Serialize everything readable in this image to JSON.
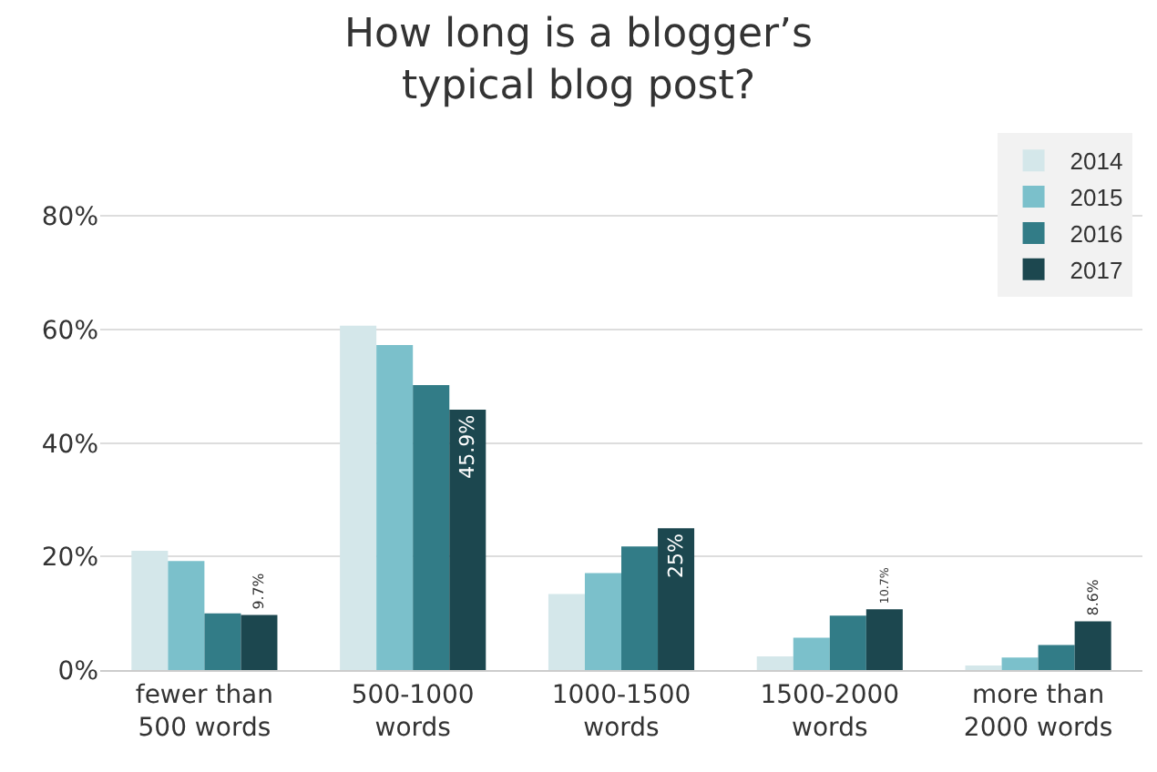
{
  "chart_data": {
    "type": "bar",
    "title": "How long is a blogger’s\ntypical blog post?",
    "categories": [
      "fewer than\n500 words",
      "500-1000\nwords",
      "1000-1500\nwords",
      "1500-2000\nwords",
      "more than\n2000 words"
    ],
    "series": [
      {
        "name": "2014",
        "color": "#d4e7ea",
        "values": [
          21.0,
          60.7,
          13.4,
          2.4,
          0.8
        ]
      },
      {
        "name": "2015",
        "color": "#7bc0cb",
        "values": [
          19.2,
          57.3,
          17.1,
          5.7,
          2.2
        ]
      },
      {
        "name": "2016",
        "color": "#327c87",
        "values": [
          10.0,
          50.2,
          21.8,
          9.6,
          4.4
        ]
      },
      {
        "name": "2017",
        "color": "#1c474f",
        "values": [
          9.7,
          45.9,
          25,
          10.7,
          8.6
        ],
        "value_labels": [
          "9.7%",
          "45.9%",
          "25%",
          "10.7%",
          "8.6%"
        ]
      }
    ],
    "ylim": [
      0,
      86
    ],
    "yticks": [
      {
        "value": 0,
        "label": "0%"
      },
      {
        "value": 20,
        "label": "20%"
      },
      {
        "value": 40,
        "label": "40%"
      },
      {
        "value": 60,
        "label": "60%"
      },
      {
        "value": 80,
        "label": "80%"
      }
    ],
    "grid": "y",
    "legend": "top right"
  }
}
